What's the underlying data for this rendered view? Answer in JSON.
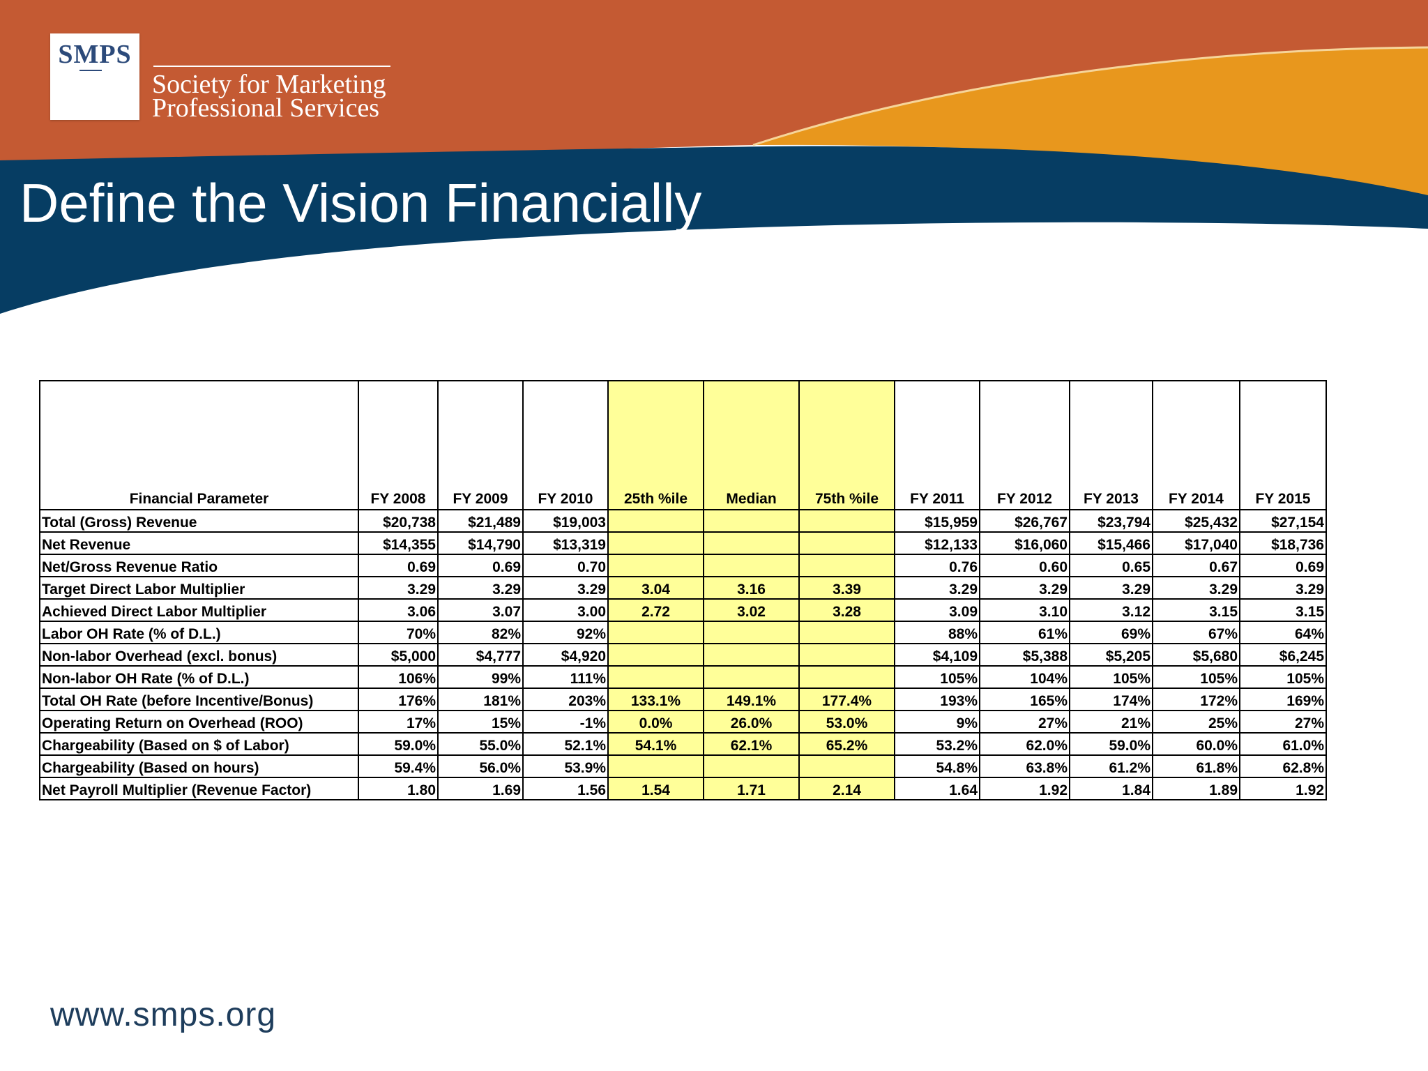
{
  "logo": {
    "mark": "SMPS",
    "org_line_1": "Society for Marketing",
    "org_line_2": "Professional Services"
  },
  "title": "Define the Vision Financially",
  "colors": {
    "orange_band": "#c45a33",
    "gold_band": "#e8971d",
    "navy_band": "#063d63",
    "highlight": "#ffff99"
  },
  "table": {
    "headers": [
      "Financial Parameter",
      "FY 2008",
      "FY 2009",
      "FY 2010",
      "25th %ile",
      "Median",
      "75th %ile",
      "FY 2011",
      "FY 2012",
      "FY 2013",
      "FY 2014",
      "FY 2015"
    ],
    "rows": [
      [
        "Total (Gross) Revenue",
        "$20,738",
        "$21,489",
        "$19,003",
        "",
        "",
        "",
        "$15,959",
        "$26,767",
        "$23,794",
        "$25,432",
        "$27,154"
      ],
      [
        "Net Revenue",
        "$14,355",
        "$14,790",
        "$13,319",
        "",
        "",
        "",
        "$12,133",
        "$16,060",
        "$15,466",
        "$17,040",
        "$18,736"
      ],
      [
        "Net/Gross Revenue Ratio",
        "0.69",
        "0.69",
        "0.70",
        "",
        "",
        "",
        "0.76",
        "0.60",
        "0.65",
        "0.67",
        "0.69"
      ],
      [
        "Target Direct Labor Multiplier",
        "3.29",
        "3.29",
        "3.29",
        "3.04",
        "3.16",
        "3.39",
        "3.29",
        "3.29",
        "3.29",
        "3.29",
        "3.29"
      ],
      [
        "Achieved Direct Labor Multiplier",
        "3.06",
        "3.07",
        "3.00",
        "2.72",
        "3.02",
        "3.28",
        "3.09",
        "3.10",
        "3.12",
        "3.15",
        "3.15"
      ],
      [
        "Labor OH Rate (% of D.L.)",
        "70%",
        "82%",
        "92%",
        "",
        "",
        "",
        "88%",
        "61%",
        "69%",
        "67%",
        "64%"
      ],
      [
        "Non-labor Overhead (excl. bonus)",
        "$5,000",
        "$4,777",
        "$4,920",
        "",
        "",
        "",
        "$4,109",
        "$5,388",
        "$5,205",
        "$5,680",
        "$6,245"
      ],
      [
        "Non-labor OH Rate (% of D.L.)",
        "106%",
        "99%",
        "111%",
        "",
        "",
        "",
        "105%",
        "104%",
        "105%",
        "105%",
        "105%"
      ],
      [
        "Total OH Rate (before Incentive/Bonus)",
        "176%",
        "181%",
        "203%",
        "133.1%",
        "149.1%",
        "177.4%",
        "193%",
        "165%",
        "174%",
        "172%",
        "169%"
      ],
      [
        "Operating Return on Overhead (ROO)",
        "17%",
        "15%",
        "-1%",
        "0.0%",
        "26.0%",
        "53.0%",
        "9%",
        "27%",
        "21%",
        "25%",
        "27%"
      ],
      [
        "Chargeability (Based on $ of Labor)",
        "59.0%",
        "55.0%",
        "52.1%",
        "54.1%",
        "62.1%",
        "65.2%",
        "53.2%",
        "62.0%",
        "59.0%",
        "60.0%",
        "61.0%"
      ],
      [
        "Chargeability (Based on hours)",
        "59.4%",
        "56.0%",
        "53.9%",
        "",
        "",
        "",
        "54.8%",
        "63.8%",
        "61.2%",
        "61.8%",
        "62.8%"
      ],
      [
        "Net Payroll Multiplier (Revenue Factor)",
        "1.80",
        "1.69",
        "1.56",
        "1.54",
        "1.71",
        "2.14",
        "1.64",
        "1.92",
        "1.84",
        "1.89",
        "1.92"
      ]
    ]
  },
  "footer": {
    "url": "www.smps.org"
  }
}
